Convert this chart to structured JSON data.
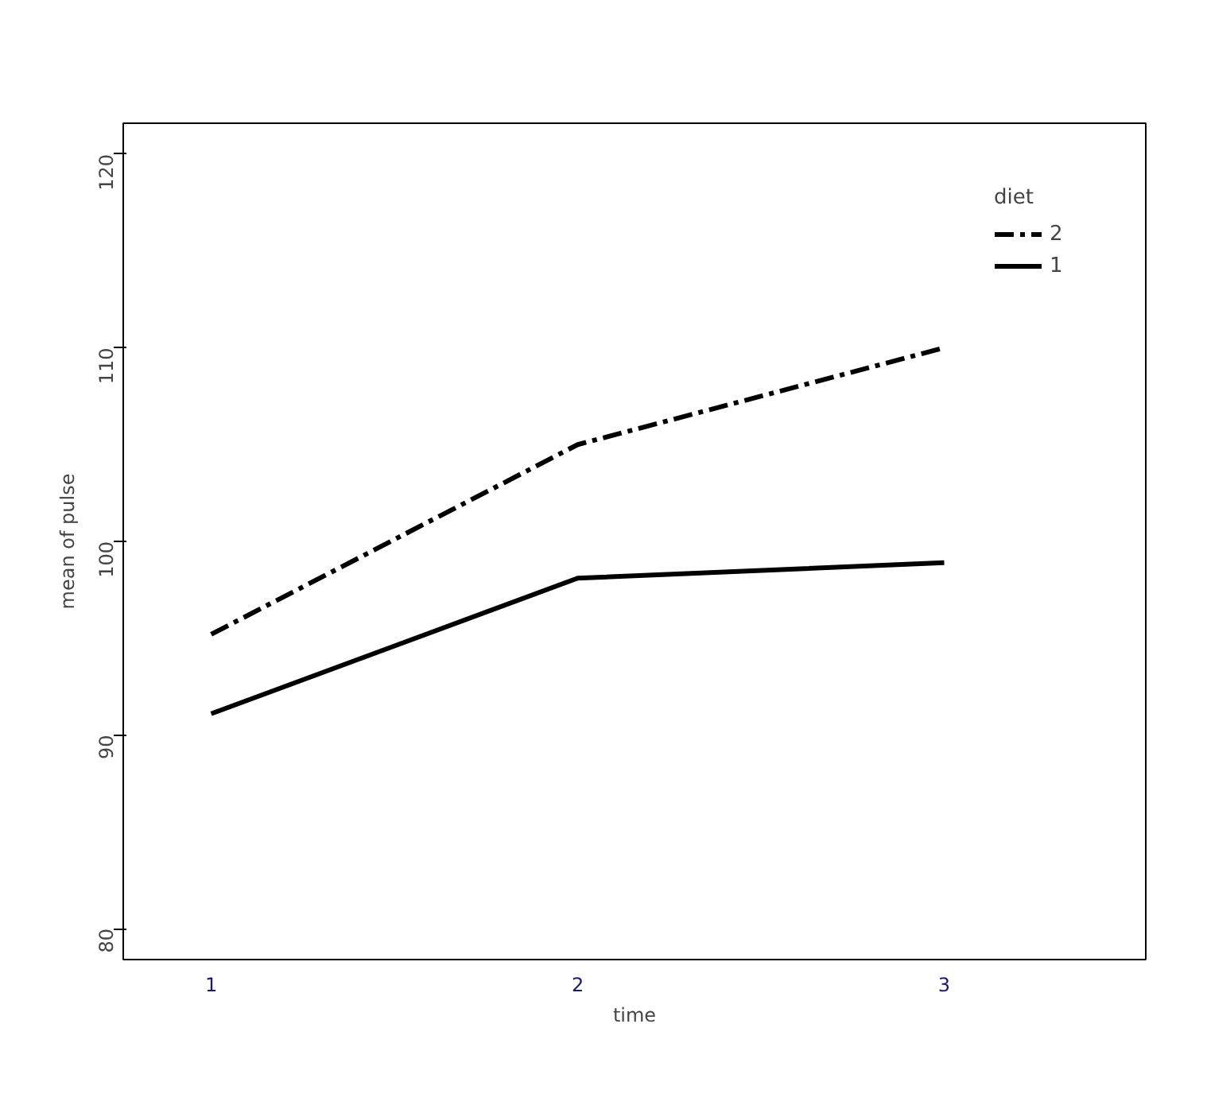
{
  "chart_data": {
    "type": "line",
    "xlabel": "time",
    "ylabel": "mean of pulse",
    "legend_title": "diet",
    "categories": [
      "1",
      "2",
      "3"
    ],
    "series": [
      {
        "name": "2",
        "color": "#000000",
        "values": [
          95.2,
          105.0,
          110.0
        ],
        "line_style": "dashed"
      },
      {
        "name": "1",
        "color": "#000000",
        "values": [
          91.1,
          98.1,
          98.9
        ],
        "line_style": "solid"
      }
    ],
    "ylim": [
      78.4,
      121.6
    ],
    "yticks": [
      80,
      90,
      100,
      110,
      120
    ],
    "legend": "top right",
    "grid": false,
    "marker": "none"
  }
}
